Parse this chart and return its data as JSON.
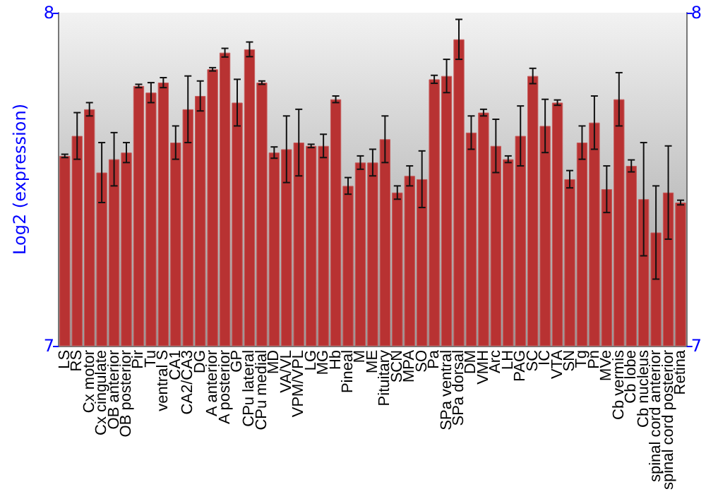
{
  "chart_data": {
    "type": "bar",
    "ylabel": "Log2 (expression)",
    "categories": [
      "LS",
      "RS",
      "Cx motor",
      "Cx cingulate",
      "OB anterior",
      "OB posterior",
      "Pir",
      "Tu",
      "ventral S",
      "CA1",
      "CA2/CA3",
      "DG",
      "A anterior",
      "A posterior",
      "GP",
      "CPu lateral",
      "CPu medial",
      "MD",
      "VA/VL",
      "VPM/VPL",
      "LG",
      "MG",
      "Hb",
      "Pineal",
      "M",
      "ME",
      "Pituitary",
      "SCN",
      "MPA",
      "SO",
      "Pa",
      "SPa ventral",
      "SPa dorsal",
      "DM",
      "VMH",
      "Arc",
      "LH",
      "PAG",
      "SC",
      "IC",
      "VTA",
      "SN",
      "Tg",
      "Pn",
      "MVe",
      "Cb vermis",
      "Cb lobe",
      "Cb nucleus",
      "spinal cord anterior",
      "spinal cord posterior",
      "Retina"
    ],
    "values": [
      7.57,
      7.63,
      7.71,
      7.52,
      7.56,
      7.58,
      7.78,
      7.76,
      7.79,
      7.61,
      7.71,
      7.75,
      7.83,
      7.88,
      7.73,
      7.89,
      7.79,
      7.58,
      7.59,
      7.61,
      7.6,
      7.6,
      7.74,
      7.48,
      7.55,
      7.55,
      7.62,
      7.46,
      7.51,
      7.5,
      7.8,
      7.81,
      7.92,
      7.64,
      7.7,
      7.6,
      7.56,
      7.63,
      7.81,
      7.66,
      7.73,
      7.5,
      7.61,
      7.67,
      7.47,
      7.74,
      7.54,
      7.44,
      7.34,
      7.46,
      7.43
    ],
    "errors": [
      0.005,
      0.07,
      0.02,
      0.09,
      0.08,
      0.03,
      0.005,
      0.03,
      0.015,
      0.05,
      0.1,
      0.045,
      0.005,
      0.013,
      0.07,
      0.022,
      0.005,
      0.017,
      0.1,
      0.1,
      0.005,
      0.035,
      0.01,
      0.025,
      0.02,
      0.04,
      0.07,
      0.02,
      0.03,
      0.085,
      0.012,
      0.05,
      0.06,
      0.05,
      0.01,
      0.08,
      0.01,
      0.09,
      0.023,
      0.08,
      0.008,
      0.026,
      0.05,
      0.08,
      0.07,
      0.08,
      0.018,
      0.17,
      0.14,
      0.14,
      0.007
    ],
    "color": "#b83232",
    "ylim": [
      7,
      8
    ],
    "yticks": [
      7,
      8
    ],
    "y2lim": [
      7,
      8
    ],
    "y2ticks": [
      7,
      8
    ],
    "grid": false
  }
}
